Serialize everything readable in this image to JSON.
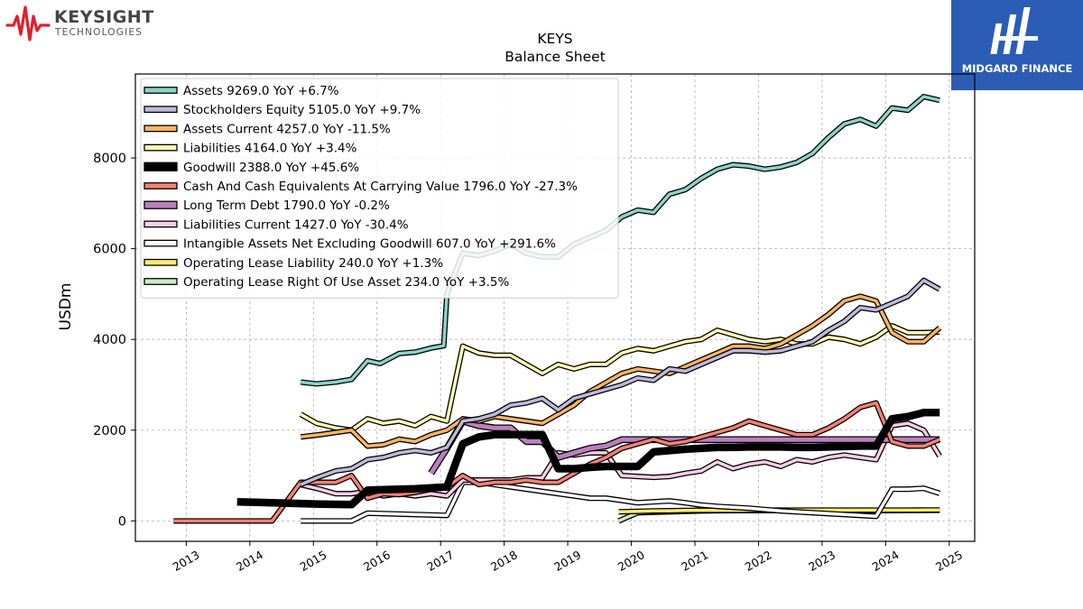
{
  "branding": {
    "company_name": "KEYSIGHT",
    "company_sub": "TECHNOLOGIES",
    "partner_name": "MIDGARD FINANCE",
    "accent_red": "#e0202a",
    "partner_blue": "#2b5db5"
  },
  "chart_data": {
    "type": "line",
    "title": "KEYS",
    "subtitle": "Balance  Sheet",
    "xlabel": "",
    "ylabel": "USDm",
    "xlim": [
      2012.2,
      2025.4
    ],
    "ylim": [
      -450,
      9850
    ],
    "x_ticks": [
      "2013",
      "2014",
      "2015",
      "2016",
      "2017",
      "2018",
      "2019",
      "2020",
      "2021",
      "2022",
      "2023",
      "2024",
      "2025"
    ],
    "y_ticks": [
      "0",
      "2000",
      "4000",
      "6000",
      "8000"
    ],
    "grid": true,
    "legend_position": "top-left",
    "series": [
      {
        "name": "Assets",
        "legend": "Assets  9269.0 YoY +6.7%",
        "color": "#8dd3c7",
        "width": 3.5,
        "x": [
          2014.8,
          2015.05,
          2015.35,
          2015.6,
          2015.85,
          2016.05,
          2016.35,
          2016.6,
          2016.85,
          2017.05,
          2017.1,
          2017.35,
          2017.6,
          2017.85,
          2018.1,
          2018.35,
          2018.6,
          2018.85,
          2019.1,
          2019.35,
          2019.6,
          2019.85,
          2020.1,
          2020.35,
          2020.6,
          2020.85,
          2021.1,
          2021.35,
          2021.6,
          2021.85,
          2022.1,
          2022.35,
          2022.6,
          2022.85,
          2023.1,
          2023.35,
          2023.6,
          2023.85,
          2024.1,
          2024.35,
          2024.6,
          2024.85
        ],
        "y": [
          3060,
          3020,
          3060,
          3120,
          3530,
          3470,
          3690,
          3720,
          3810,
          3860,
          5000,
          5900,
          5850,
          5950,
          6100,
          5900,
          5820,
          5820,
          6100,
          6250,
          6400,
          6700,
          6850,
          6800,
          7200,
          7300,
          7550,
          7750,
          7850,
          7820,
          7750,
          7800,
          7900,
          8100,
          8450,
          8750,
          8850,
          8700,
          9100,
          9050,
          9350,
          9269
        ]
      },
      {
        "name": "Stockholders Equity",
        "legend": "Stockholders Equity  5105.0 YoY +9.7%",
        "color": "#bebada",
        "width": 3.5,
        "x": [
          2014.8,
          2015.05,
          2015.35,
          2015.6,
          2015.85,
          2016.1,
          2016.35,
          2016.6,
          2016.85,
          2017.1,
          2017.35,
          2017.6,
          2017.85,
          2018.1,
          2018.35,
          2018.6,
          2018.85,
          2019.1,
          2019.35,
          2019.6,
          2019.85,
          2020.1,
          2020.35,
          2020.6,
          2020.85,
          2021.1,
          2021.35,
          2021.6,
          2021.85,
          2022.1,
          2022.35,
          2022.6,
          2022.85,
          2023.1,
          2023.35,
          2023.6,
          2023.85,
          2024.1,
          2024.35,
          2024.6,
          2024.85
        ],
        "y": [
          800,
          950,
          1100,
          1150,
          1350,
          1400,
          1500,
          1550,
          1500,
          1620,
          2200,
          2250,
          2350,
          2550,
          2600,
          2700,
          2450,
          2700,
          2800,
          2900,
          3000,
          3150,
          3100,
          3350,
          3300,
          3450,
          3600,
          3750,
          3750,
          3720,
          3750,
          3850,
          3950,
          4200,
          4400,
          4700,
          4650,
          4800,
          4950,
          5300,
          5105
        ]
      },
      {
        "name": "Assets Current",
        "legend": "Assets Current  4257.0 YoY -11.5%",
        "color": "#fdb462",
        "width": 3.5,
        "x": [
          2014.8,
          2015.1,
          2015.35,
          2015.6,
          2015.85,
          2016.1,
          2016.35,
          2016.6,
          2016.85,
          2017.1,
          2017.35,
          2017.6,
          2017.85,
          2018.1,
          2018.35,
          2018.6,
          2018.85,
          2019.1,
          2019.35,
          2019.6,
          2019.85,
          2020.1,
          2020.35,
          2020.6,
          2020.85,
          2021.1,
          2021.35,
          2021.6,
          2021.85,
          2022.1,
          2022.35,
          2022.6,
          2022.85,
          2023.1,
          2023.35,
          2023.6,
          2023.85,
          2024.1,
          2024.35,
          2024.6,
          2024.85
        ],
        "y": [
          1850,
          1900,
          1950,
          2000,
          1650,
          1680,
          1800,
          1750,
          1900,
          2000,
          2250,
          2200,
          2300,
          2250,
          2200,
          2150,
          2350,
          2550,
          2850,
          3050,
          3250,
          3350,
          3300,
          3250,
          3400,
          3550,
          3700,
          3850,
          3850,
          3800,
          3900,
          4100,
          4300,
          4550,
          4850,
          4950,
          4850,
          4150,
          3950,
          3950,
          4257
        ]
      },
      {
        "name": "Liabilities",
        "legend": "Liabilities  4164.0 YoY +3.4%",
        "color": "#ffffb3",
        "width": 3.5,
        "x": [
          2014.8,
          2015.05,
          2015.35,
          2015.6,
          2015.85,
          2016.1,
          2016.35,
          2016.6,
          2016.85,
          2017.1,
          2017.35,
          2017.6,
          2017.85,
          2018.1,
          2018.35,
          2018.6,
          2018.85,
          2019.1,
          2019.35,
          2019.6,
          2019.85,
          2020.1,
          2020.35,
          2020.6,
          2020.85,
          2021.1,
          2021.35,
          2021.6,
          2021.85,
          2022.1,
          2022.35,
          2022.6,
          2022.85,
          2023.1,
          2023.35,
          2023.6,
          2023.85,
          2024.1,
          2024.35,
          2024.6,
          2024.85
        ],
        "y": [
          2350,
          2150,
          2050,
          2000,
          2250,
          2150,
          2200,
          2100,
          2300,
          2200,
          3850,
          3700,
          3650,
          3650,
          3450,
          3250,
          3450,
          3350,
          3450,
          3450,
          3700,
          3800,
          3750,
          3850,
          3950,
          4000,
          4200,
          4100,
          4000,
          3950,
          4000,
          3900,
          3900,
          4050,
          4000,
          3900,
          4050,
          4300,
          4150,
          4150,
          4164
        ]
      },
      {
        "name": "Goodwill",
        "legend": "Goodwill  2388.0 YoY +45.6%",
        "color": "#000000",
        "width": 8.5,
        "x": [
          2013.8,
          2014.1,
          2014.35,
          2014.6,
          2014.85,
          2015.1,
          2015.35,
          2015.6,
          2015.85,
          2016.1,
          2016.35,
          2016.6,
          2016.85,
          2017.1,
          2017.35,
          2017.6,
          2017.85,
          2018.1,
          2018.35,
          2018.6,
          2018.85,
          2019.1,
          2019.35,
          2019.6,
          2019.85,
          2020.1,
          2020.35,
          2020.6,
          2020.85,
          2021.1,
          2021.35,
          2021.6,
          2021.85,
          2022.1,
          2022.35,
          2022.6,
          2022.85,
          2023.1,
          2023.35,
          2023.6,
          2023.85,
          2024.1,
          2024.35,
          2024.6,
          2024.85
        ],
        "y": [
          420,
          410,
          400,
          390,
          380,
          370,
          365,
          360,
          680,
          690,
          700,
          710,
          730,
          750,
          1700,
          1850,
          1900,
          1900,
          1900,
          1900,
          1150,
          1150,
          1180,
          1200,
          1200,
          1200,
          1520,
          1550,
          1580,
          1600,
          1620,
          1620,
          1630,
          1630,
          1630,
          1620,
          1620,
          1630,
          1640,
          1650,
          1650,
          2250,
          2300,
          2388,
          2388
        ]
      },
      {
        "name": "Cash And Cash Equivalents At Carrying Value",
        "legend": "Cash And Cash Equivalents At Carrying Value  1796.0 YoY -27.3%",
        "color": "#fb8072",
        "width": 3.5,
        "x": [
          2012.8,
          2013.1,
          2013.35,
          2013.6,
          2013.85,
          2014.1,
          2014.35,
          2014.8,
          2015.1,
          2015.35,
          2015.6,
          2015.85,
          2016.1,
          2016.35,
          2016.6,
          2016.85,
          2017.1,
          2017.35,
          2017.6,
          2017.85,
          2018.1,
          2018.35,
          2018.6,
          2018.85,
          2019.1,
          2019.35,
          2019.6,
          2019.85,
          2020.1,
          2020.35,
          2020.6,
          2020.85,
          2021.1,
          2021.35,
          2021.6,
          2021.85,
          2022.1,
          2022.35,
          2022.6,
          2022.85,
          2023.1,
          2023.35,
          2023.6,
          2023.85,
          2024.1,
          2024.35,
          2024.6,
          2024.85
        ],
        "y": [
          0,
          0,
          0,
          0,
          0,
          0,
          0,
          850,
          850,
          850,
          1000,
          500,
          600,
          580,
          630,
          700,
          750,
          1000,
          800,
          850,
          850,
          900,
          850,
          850,
          1050,
          1250,
          1400,
          1600,
          1700,
          1800,
          1700,
          1750,
          1850,
          1950,
          2050,
          2200,
          2100,
          2000,
          1900,
          1900,
          2050,
          2250,
          2500,
          2600,
          1750,
          1650,
          1650,
          1796
        ]
      },
      {
        "name": "Long Term Debt",
        "legend": "Long Term Debt  1790.0 YoY -0.2%",
        "color": "#bc80bd",
        "width": 5,
        "x": [
          2016.85,
          2017.1,
          2017.35,
          2017.6,
          2017.85,
          2018.1,
          2018.35,
          2018.6,
          2018.85,
          2019.1,
          2019.35,
          2019.6,
          2019.85,
          2020.1,
          2020.35,
          2020.6,
          2020.85,
          2021.1,
          2021.35,
          2021.6,
          2021.85,
          2022.1,
          2022.35,
          2022.6,
          2022.85,
          2023.1,
          2023.35,
          2023.6,
          2023.85,
          2024.1,
          2024.35,
          2024.6,
          2024.85
        ],
        "y": [
          1050,
          1600,
          2200,
          2100,
          2050,
          2050,
          1750,
          1750,
          1400,
          1500,
          1600,
          1650,
          1790,
          1790,
          1790,
          1790,
          1790,
          1790,
          1790,
          1790,
          1790,
          1790,
          1790,
          1790,
          1790,
          1790,
          1790,
          1790,
          1790,
          1790,
          1790,
          1790,
          1790
        ]
      },
      {
        "name": "Liabilities Current",
        "legend": "Liabilities Current  1427.0 YoY -30.4%",
        "color": "#fccde5",
        "width": 3.5,
        "x": [
          2014.8,
          2015.1,
          2015.35,
          2015.6,
          2015.85,
          2016.1,
          2016.35,
          2016.6,
          2016.85,
          2017.1,
          2017.35,
          2017.6,
          2017.85,
          2018.1,
          2018.35,
          2018.6,
          2018.85,
          2019.1,
          2019.35,
          2019.6,
          2019.85,
          2020.1,
          2020.35,
          2020.6,
          2020.85,
          2021.1,
          2021.35,
          2021.6,
          2021.85,
          2022.1,
          2022.35,
          2022.6,
          2022.85,
          2023.1,
          2023.35,
          2023.6,
          2023.85,
          2024.1,
          2024.35,
          2024.6,
          2024.85
        ],
        "y": [
          800,
          700,
          600,
          600,
          650,
          550,
          600,
          550,
          600,
          550,
          900,
          900,
          900,
          900,
          950,
          950,
          1500,
          1450,
          1500,
          1500,
          1000,
          980,
          960,
          980,
          1050,
          1100,
          1300,
          1150,
          1250,
          1300,
          1200,
          1350,
          1300,
          1400,
          1450,
          1400,
          1350,
          2100,
          2150,
          2000,
          1427
        ]
      },
      {
        "name": "Intangible Assets Net Excluding Goodwill",
        "legend": "Intangible Assets Net Excluding Goodwill  607.0 YoY +291.6%",
        "color": "#ffffff",
        "width": 3.5,
        "x": [
          2014.8,
          2015.1,
          2015.35,
          2015.6,
          2015.85,
          2016.1,
          2016.35,
          2016.6,
          2016.85,
          2017.1,
          2017.35,
          2017.6,
          2017.85,
          2018.1,
          2018.35,
          2018.6,
          2018.85,
          2019.1,
          2019.35,
          2019.6,
          2019.85,
          2020.1,
          2020.35,
          2020.6,
          2020.85,
          2021.1,
          2021.35,
          2021.6,
          2021.85,
          2022.1,
          2022.35,
          2022.6,
          2022.85,
          2023.1,
          2023.35,
          2023.6,
          2023.85,
          2024.1,
          2024.35,
          2024.6,
          2024.85
        ],
        "y": [
          0,
          0,
          0,
          0,
          170,
          160,
          150,
          140,
          130,
          120,
          850,
          850,
          800,
          750,
          700,
          650,
          600,
          550,
          500,
          500,
          450,
          400,
          420,
          440,
          400,
          350,
          320,
          300,
          280,
          250,
          220,
          200,
          180,
          160,
          140,
          120,
          100,
          700,
          700,
          720,
          607
        ]
      },
      {
        "name": "Operating Lease Liability",
        "legend": "Operating Lease Liability  240.0 YoY +1.3%",
        "color": "#ffed6f",
        "width": 3.5,
        "x": [
          2019.8,
          2020.1,
          2020.35,
          2020.6,
          2020.85,
          2021.1,
          2021.35,
          2021.6,
          2021.85,
          2022.1,
          2022.35,
          2022.6,
          2022.85,
          2023.1,
          2023.35,
          2023.6,
          2023.85,
          2024.1,
          2024.35,
          2024.6,
          2024.85
        ],
        "y": [
          200,
          210,
          220,
          225,
          230,
          235,
          235,
          235,
          237,
          237,
          237,
          237,
          237,
          237,
          237,
          237,
          237,
          238,
          238,
          239,
          240
        ]
      },
      {
        "name": "Operating Lease Right Of Use Asset",
        "legend": "Operating Lease Right Of Use Asset  234.0 YoY +3.5%",
        "color": "#ccebc5",
        "width": 3.5,
        "x": [
          2019.8,
          2020.1,
          2020.35,
          2020.6,
          2020.85,
          2021.1,
          2021.35,
          2021.6,
          2021.85,
          2022.1,
          2022.35,
          2022.6,
          2022.85,
          2023.1,
          2023.35,
          2023.6,
          2023.85,
          2024.1,
          2024.35,
          2024.6,
          2024.85
        ],
        "y": [
          0,
          180,
          190,
          200,
          210,
          220,
          225,
          228,
          228,
          228,
          226,
          226,
          226,
          226,
          226,
          226,
          226,
          228,
          230,
          232,
          234
        ]
      }
    ]
  }
}
